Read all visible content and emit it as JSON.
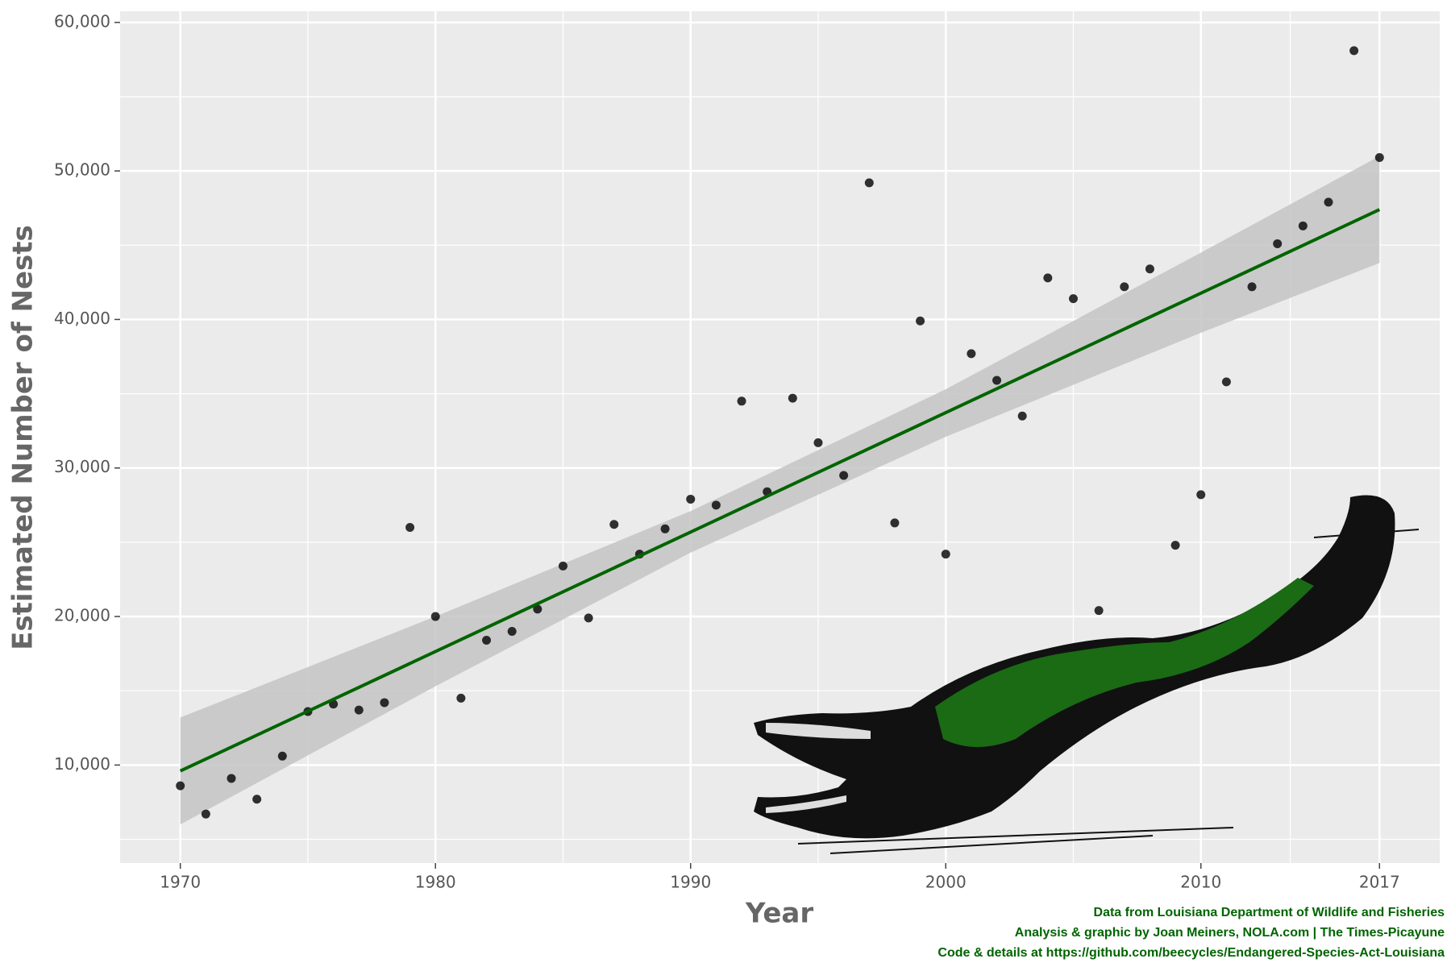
{
  "chart_data": {
    "type": "scatter",
    "x_label": "Year",
    "y_label": "Estimated Number of Nests",
    "x": [
      1970,
      1971,
      1972,
      1973,
      1974,
      1975,
      1976,
      1977,
      1978,
      1979,
      1980,
      1981,
      1982,
      1983,
      1984,
      1985,
      1986,
      1987,
      1988,
      1989,
      1990,
      1991,
      1992,
      1993,
      1994,
      1995,
      1996,
      1997,
      1998,
      1999,
      2000,
      2001,
      2002,
      2003,
      2004,
      2005,
      2006,
      2007,
      2008,
      2009,
      2010,
      2011,
      2012,
      2013,
      2014,
      2015,
      2016,
      2017
    ],
    "values": [
      8600,
      6700,
      9100,
      7700,
      10600,
      13600,
      14100,
      13700,
      14200,
      26000,
      20000,
      14500,
      18400,
      19000,
      20500,
      23400,
      19900,
      26200,
      24200,
      25900,
      27900,
      27500,
      34500,
      28400,
      34700,
      31700,
      29500,
      49200,
      26300,
      39900,
      24200,
      37700,
      35900,
      33500,
      42800,
      41400,
      20400,
      42200,
      43400,
      24800,
      28200,
      35800,
      42200,
      45100,
      46300,
      47900,
      58100,
      50900
    ],
    "point_color": "#000000",
    "fit": {
      "x": [
        1970,
        2017
      ],
      "y": [
        9600,
        47400
      ],
      "color": "#006400"
    },
    "fit_band": {
      "x": [
        1970,
        1980,
        1990,
        2000,
        2010,
        2017
      ],
      "lower": [
        6000,
        15300,
        24300,
        32100,
        39100,
        43800
      ],
      "upper": [
        13200,
        20000,
        27100,
        35300,
        44500,
        51000
      ],
      "color": "#c4c4c4"
    },
    "xlim": [
      1967.64,
      2019.36
    ],
    "ylim": [
      3400,
      60750
    ],
    "xticks": [
      1970,
      1980,
      1990,
      2000,
      2010,
      2017
    ],
    "yticks": [
      {
        "value": 10000,
        "label": "10,000"
      },
      {
        "value": 20000,
        "label": "20,000"
      },
      {
        "value": 30000,
        "label": "30,000"
      },
      {
        "value": 40000,
        "label": "40,000"
      },
      {
        "value": 50000,
        "label": "50,000"
      },
      {
        "value": 60000,
        "label": "60,000"
      }
    ],
    "minor_xticks": [
      1975,
      1985,
      1995,
      2005,
      2013.5
    ],
    "minor_yticks": [
      5000,
      15000,
      25000,
      35000,
      45000,
      55000
    ],
    "grid": true,
    "credits": [
      "Data from Louisiana Department of Wildlife and Fisheries",
      "Analysis & graphic by Joan Meiners, NOLA.com | The Times-Picayune",
      "Code & details at https://github.com/beecycles/Endangered-Species-Act-Louisiana"
    ],
    "credits_color": "#006400"
  }
}
